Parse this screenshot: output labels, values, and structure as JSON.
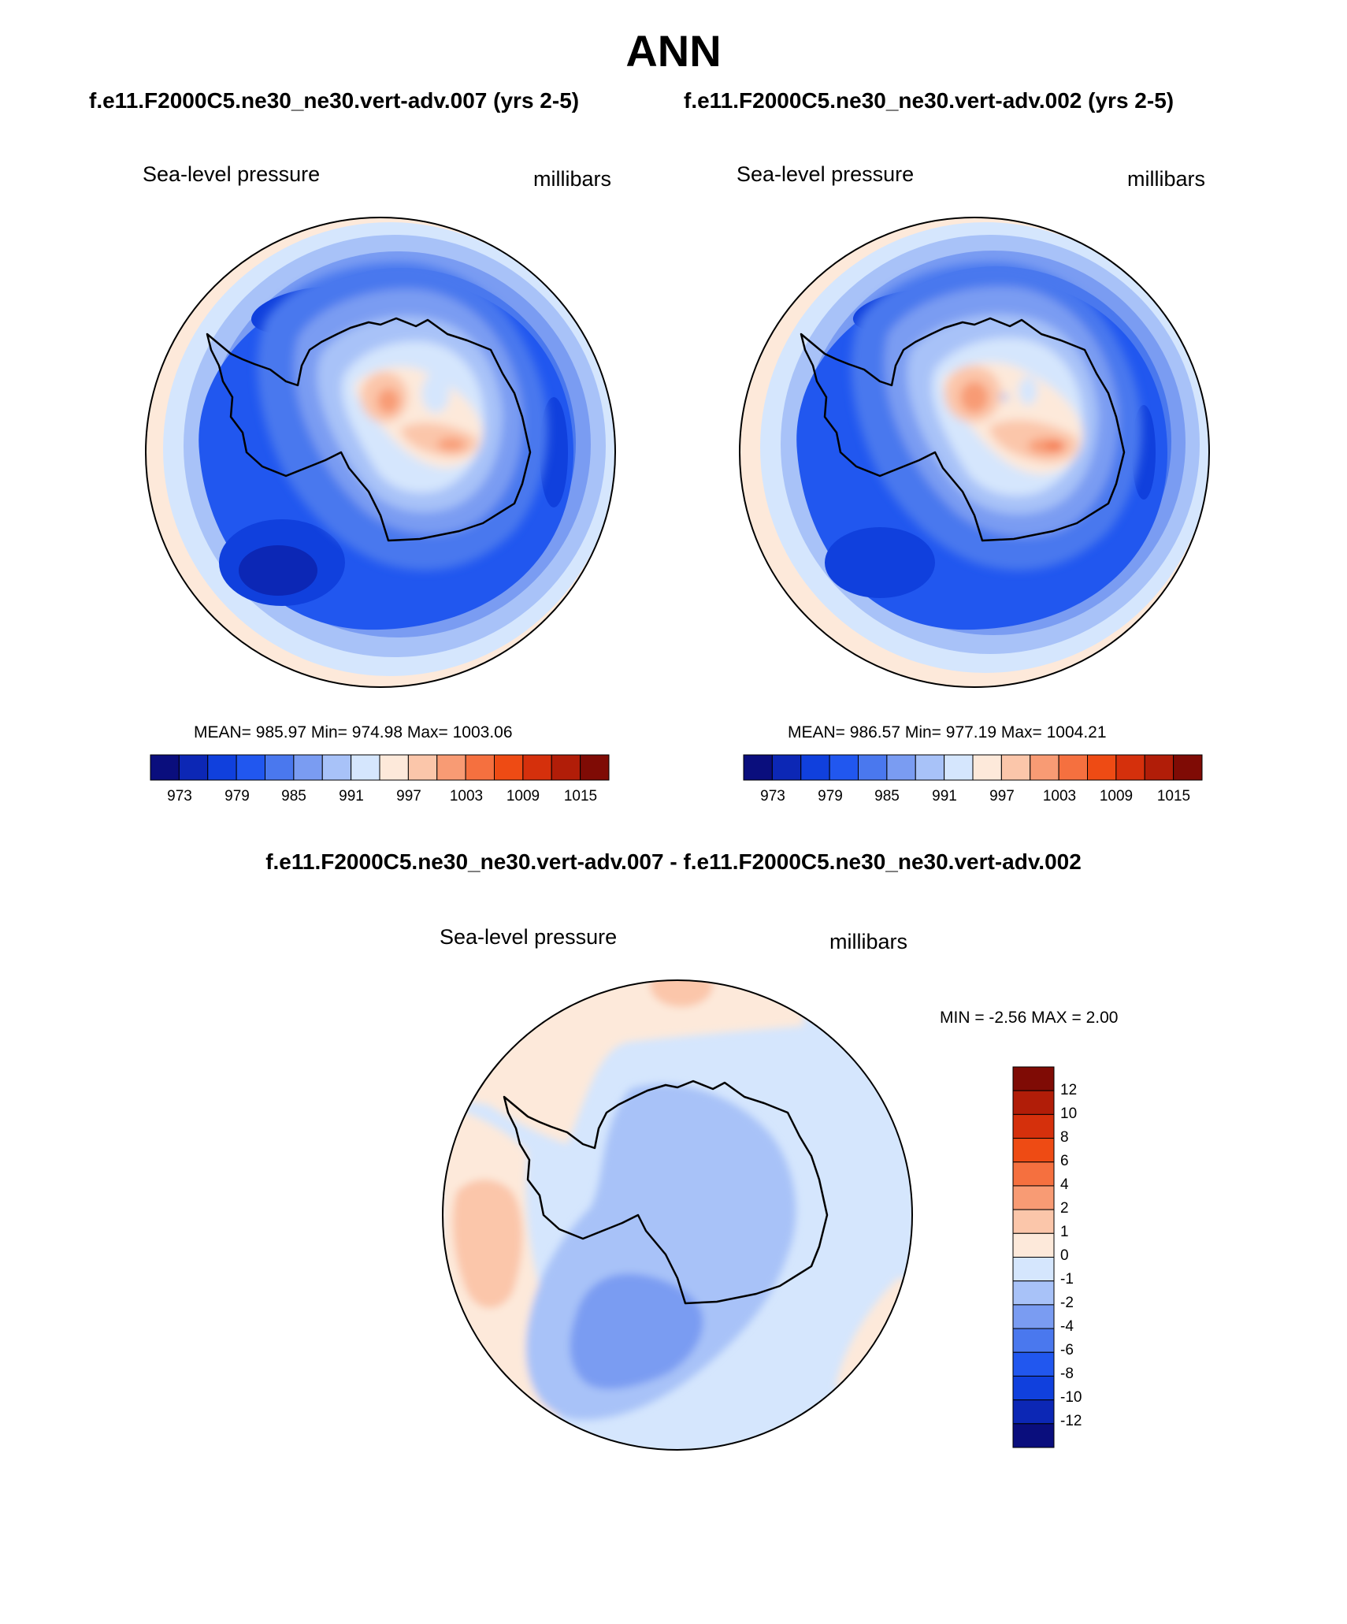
{
  "figure": {
    "title": "ANN",
    "left_case": "f.e11.F2000C5.ne30_ne30.vert-adv.007 (yrs 2-5)",
    "right_case": "f.e11.F2000C5.ne30_ne30.vert-adv.002 (yrs 2-5)",
    "diff_title": "f.e11.F2000C5.ne30_ne30.vert-adv.007 - f.e11.F2000C5.ne30_ne30.vert-adv.002"
  },
  "panels": {
    "left": {
      "variable": "Sea-level pressure",
      "units": "millibars",
      "stats": "MEAN= 985.97  Min= 974.98  Max= 1003.06",
      "mean": 985.97,
      "min": 974.98,
      "max": 1003.06
    },
    "right": {
      "variable": "Sea-level pressure",
      "units": "millibars",
      "stats": "MEAN= 986.57  Min= 977.19  Max= 1004.21",
      "mean": 986.57,
      "min": 977.19,
      "max": 1004.21
    },
    "diff": {
      "variable": "Sea-level pressure",
      "units": "millibars",
      "stats": "MIN =  -2.56 MAX =   2.00",
      "min": -2.56,
      "max": 2.0
    }
  },
  "colorbar_main": {
    "labels": [
      "973",
      "979",
      "985",
      "991",
      "997",
      "1003",
      "1009",
      "1015"
    ],
    "colors": [
      "#0a0e7d",
      "#0c27b5",
      "#1040dd",
      "#2157ef",
      "#4a78ee",
      "#7a9cf2",
      "#a8c2f8",
      "#d5e6fd",
      "#fde9da",
      "#fbc6aa",
      "#f89b74",
      "#f5703f",
      "#ee4b14",
      "#d5300c",
      "#b11d08",
      "#7f0b05"
    ]
  },
  "colorbar_diff": {
    "labels": [
      "12",
      "10",
      "8",
      "6",
      "4",
      "2",
      "1",
      "0",
      "-1",
      "-2",
      "-4",
      "-6",
      "-8",
      "-10",
      "-12"
    ],
    "colors": [
      "#7f0b05",
      "#b11d08",
      "#d5300c",
      "#ee4b14",
      "#f5703f",
      "#f89b74",
      "#fbc6aa",
      "#fde9da",
      "#d5e6fd",
      "#a8c2f8",
      "#7a9cf2",
      "#4a78ee",
      "#2157ef",
      "#1040dd",
      "#0c27b5",
      "#0a0e7d"
    ]
  }
}
